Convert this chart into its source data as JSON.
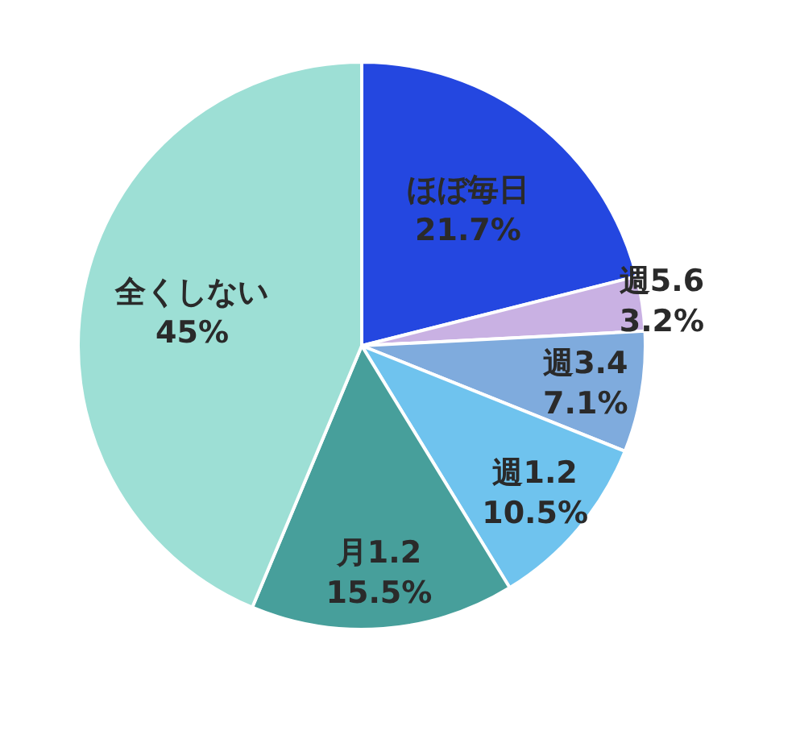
{
  "chart_data": {
    "type": "pie",
    "categories": [
      "ほぼ毎日",
      "週5.6",
      "週3.4",
      "週1.2",
      "月1.2",
      "全くしない"
    ],
    "values": [
      21.7,
      3.2,
      7.1,
      10.5,
      15.5,
      45
    ],
    "colors": [
      "#2447e0",
      "#c9b1e3",
      "#7fabdd",
      "#6fc3ee",
      "#479f9b",
      "#9ddfd5"
    ],
    "value_labels": [
      "21.7%",
      "3.2%",
      "7.1%",
      "10.5%",
      "15.5%",
      "45%"
    ]
  }
}
